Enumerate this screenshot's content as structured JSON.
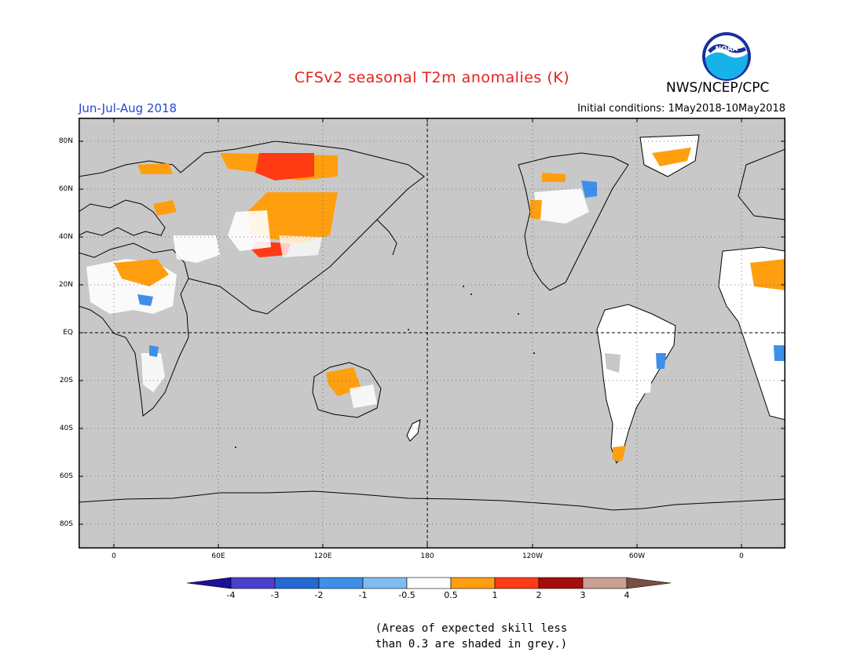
{
  "header": {
    "title": "CFSv2 seasonal T2m anomalies (K)",
    "agency": "NWS/NCEP/CPC",
    "period": "Jun-Jul-Aug 2018",
    "initial_conditions": "Initial conditions: 1May2018-10May2018",
    "logo_text": "NOAA"
  },
  "map": {
    "type": "global anomaly map",
    "projection": "cylindrical equidistant, Pacific-centered",
    "latitude_labels": [
      "80N",
      "60N",
      "40N",
      "20N",
      "EQ",
      "20S",
      "40S",
      "60S",
      "80S"
    ],
    "longitude_labels": [
      "0",
      "60E",
      "120E",
      "180",
      "120W",
      "60W",
      "0"
    ],
    "background_color": "#c8c8c8",
    "land_outline_color": "#000000"
  },
  "colorbar": {
    "labels": [
      "-4",
      "-3",
      "-2",
      "-1",
      "-0.5",
      "0.5",
      "1",
      "2",
      "3",
      "4"
    ],
    "colors": [
      "#1c0f9a",
      "#4b3fcc",
      "#2469d4",
      "#3f8fe8",
      "#80bcf2",
      "#ffffff",
      "#ff9f0f",
      "#ff3b14",
      "#a50d0d",
      "#c9a092",
      "#7a4e42"
    ]
  },
  "note": {
    "line1": "(Areas of expected skill less",
    "line2": "than 0.3 are shaded in grey.)"
  }
}
